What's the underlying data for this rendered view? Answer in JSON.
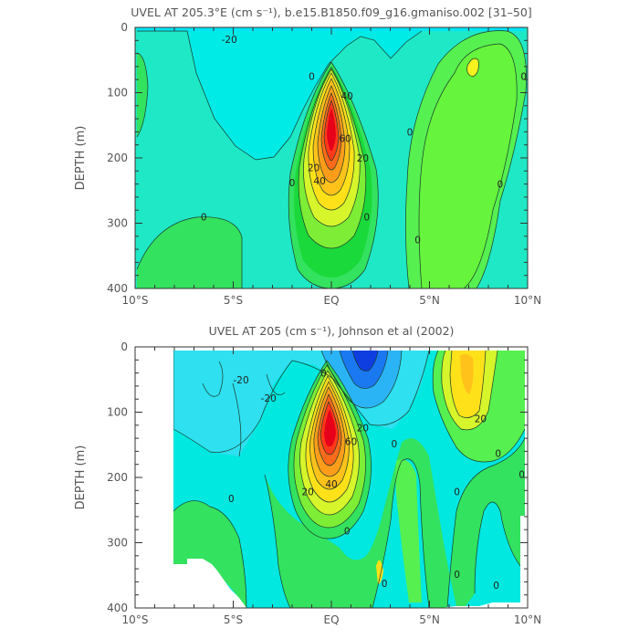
{
  "chart_data": [
    {
      "type": "heatmap",
      "title": "UVEL AT 205.3°E (cm s⁻¹), b.e15.B1850.f09_g16.gmaniso.002 [31–50]",
      "ylabel": "DEPTH (m)",
      "xlabel": "",
      "x_ticks": [
        "10°S",
        "5°S",
        "EQ",
        "5°N",
        "10°N"
      ],
      "y_ticks": [
        "0",
        "100",
        "200",
        "300",
        "400"
      ],
      "xlim": [
        -10,
        10
      ],
      "ylim": [
        400,
        0
      ],
      "contour_labels": [
        {
          "text": "-20",
          "lat": -5.2,
          "depth": 18
        },
        {
          "text": "0",
          "lat": -1.0,
          "depth": 75
        },
        {
          "text": "0",
          "lat": -6.5,
          "depth": 290
        },
        {
          "text": "0",
          "lat": -2.0,
          "depth": 238
        },
        {
          "text": "0",
          "lat": 1.8,
          "depth": 290
        },
        {
          "text": "0",
          "lat": 4.0,
          "depth": 160
        },
        {
          "text": "0",
          "lat": 4.4,
          "depth": 325
        },
        {
          "text": "0",
          "lat": 8.6,
          "depth": 240
        },
        {
          "text": "0",
          "lat": 9.8,
          "depth": 75
        },
        {
          "text": "40",
          "lat": 0.8,
          "depth": 105
        },
        {
          "text": "40",
          "lat": -0.6,
          "depth": 235
        },
        {
          "text": "20",
          "lat": -0.9,
          "depth": 215
        },
        {
          "text": "20",
          "lat": 1.6,
          "depth": 200
        },
        {
          "text": "60",
          "lat": 0.7,
          "depth": 170
        }
      ]
    },
    {
      "type": "heatmap",
      "title": "UVEL AT 205 (cm s⁻¹), Johnson et al (2002)",
      "ylabel": "DEPTH (m)",
      "xlabel": "",
      "x_ticks": [
        "10°S",
        "5°S",
        "EQ",
        "5°N",
        "10°N"
      ],
      "y_ticks": [
        "0",
        "100",
        "200",
        "300",
        "400"
      ],
      "xlim": [
        -10,
        10
      ],
      "ylim": [
        400,
        0
      ],
      "contour_labels": [
        {
          "text": "-20",
          "lat": -4.6,
          "depth": 50
        },
        {
          "text": "-20",
          "lat": -3.2,
          "depth": 78
        },
        {
          "text": "0",
          "lat": -0.4,
          "depth": 40
        },
        {
          "text": "0",
          "lat": 3.2,
          "depth": 148
        },
        {
          "text": "20",
          "lat": 7.6,
          "depth": 110
        },
        {
          "text": "20",
          "lat": 1.6,
          "depth": 124
        },
        {
          "text": "60",
          "lat": 1.0,
          "depth": 145
        },
        {
          "text": "40",
          "lat": 0.0,
          "depth": 210
        },
        {
          "text": "20",
          "lat": -1.2,
          "depth": 222
        },
        {
          "text": "0",
          "lat": -5.1,
          "depth": 232
        },
        {
          "text": "0",
          "lat": 0.8,
          "depth": 282
        },
        {
          "text": "0",
          "lat": 2.7,
          "depth": 362
        },
        {
          "text": "0",
          "lat": 6.4,
          "depth": 222
        },
        {
          "text": "0",
          "lat": 8.5,
          "depth": 163
        },
        {
          "text": "0",
          "lat": 9.7,
          "depth": 195
        },
        {
          "text": "0",
          "lat": 6.4,
          "depth": 348
        },
        {
          "text": "0",
          "lat": 8.4,
          "depth": 365
        }
      ]
    }
  ]
}
